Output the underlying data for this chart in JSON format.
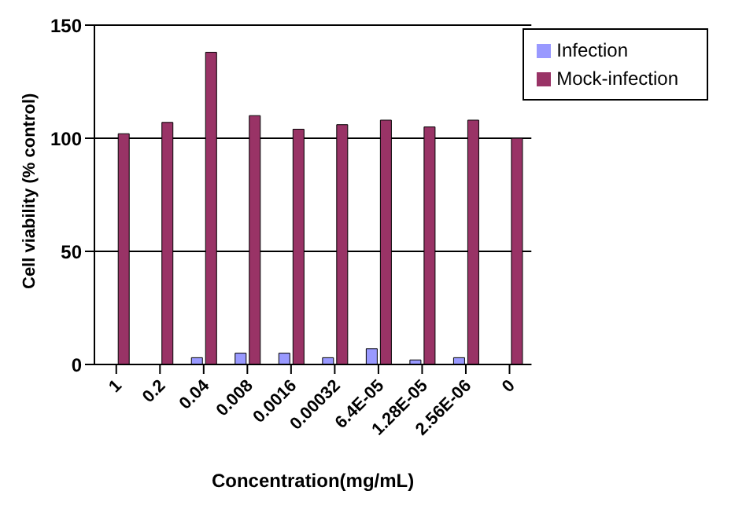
{
  "chart_data": {
    "type": "bar",
    "xlabel": "Concentration(mg/mL)",
    "ylabel": "Cell viability (% control)",
    "categories": [
      "1",
      "0.2",
      "0.04",
      "0.008",
      "0.0016",
      "0.00032",
      "6.4E-05",
      "1.28E-05",
      "2.56E-06",
      "0"
    ],
    "series": [
      {
        "name": "Infection",
        "color": "#9999ff",
        "values": [
          0,
          0,
          3,
          5,
          5,
          3,
          7,
          2,
          3,
          0
        ]
      },
      {
        "name": "Mock-infection",
        "color": "#993366",
        "values": [
          102,
          107,
          138,
          110,
          104,
          106,
          108,
          105,
          108,
          100
        ]
      }
    ],
    "ylim": [
      0,
      150
    ],
    "yticks": [
      0,
      50,
      100,
      150
    ],
    "grid": "y",
    "legend": "top right"
  }
}
